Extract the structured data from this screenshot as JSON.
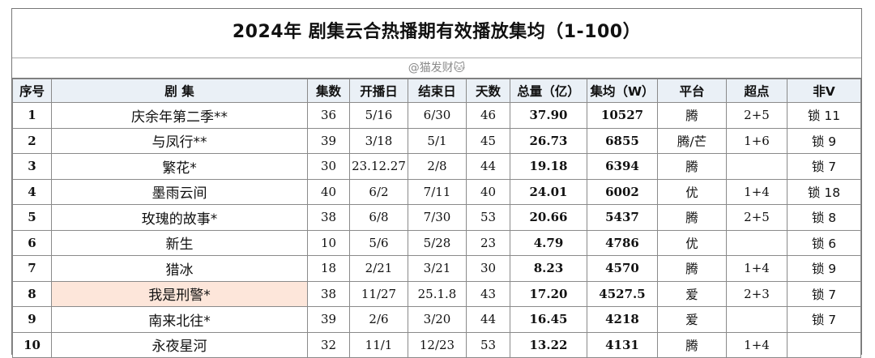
{
  "title": "2024年 剧集云合热播期有效播放集均（1-100）",
  "credit": "@猫发财🐱",
  "colors": {
    "header_bg": "#eaf0f6",
    "highlight_bg": "#fde6da",
    "border": "#8a8a8a"
  },
  "columns": [
    "序号",
    "剧 集",
    "集数",
    "开播日",
    "结束日",
    "天数",
    "总量（亿）",
    "集均（W）",
    "平台",
    "超点",
    "非V"
  ],
  "rows": [
    {
      "idx": "1",
      "name": "庆余年第二季**",
      "episodes": "36",
      "start": "5/16",
      "end": "6/30",
      "days": "46",
      "total": "37.90",
      "avg": "10527",
      "platform": "腾",
      "super": "2+5",
      "nonv": "锁 11",
      "highlight": false
    },
    {
      "idx": "2",
      "name": "与凤行**",
      "episodes": "39",
      "start": "3/18",
      "end": "5/1",
      "days": "45",
      "total": "26.73",
      "avg": "6855",
      "platform": "腾/芒",
      "super": "1+6",
      "nonv": "锁 9",
      "highlight": false
    },
    {
      "idx": "3",
      "name": "繁花*",
      "episodes": "30",
      "start": "23.12.27",
      "end": "2/8",
      "days": "44",
      "total": "19.18",
      "avg": "6394",
      "platform": "腾",
      "super": "",
      "nonv": "锁 7",
      "highlight": false
    },
    {
      "idx": "4",
      "name": "墨雨云间",
      "episodes": "40",
      "start": "6/2",
      "end": "7/11",
      "days": "40",
      "total": "24.01",
      "avg": "6002",
      "platform": "优",
      "super": "1+4",
      "nonv": "锁 18",
      "highlight": false
    },
    {
      "idx": "5",
      "name": "玫瑰的故事*",
      "episodes": "38",
      "start": "6/8",
      "end": "7/30",
      "days": "53",
      "total": "20.66",
      "avg": "5437",
      "platform": "腾",
      "super": "2+5",
      "nonv": "锁 8",
      "highlight": false
    },
    {
      "idx": "6",
      "name": "新生",
      "episodes": "10",
      "start": "5/6",
      "end": "5/28",
      "days": "23",
      "total": "4.79",
      "avg": "4786",
      "platform": "优",
      "super": "",
      "nonv": "锁 6",
      "highlight": false
    },
    {
      "idx": "7",
      "name": "猎冰",
      "episodes": "18",
      "start": "2/21",
      "end": "3/21",
      "days": "30",
      "total": "8.23",
      "avg": "4570",
      "platform": "腾",
      "super": "1+4",
      "nonv": "锁 9",
      "highlight": false
    },
    {
      "idx": "8",
      "name": "我是刑警*",
      "episodes": "38",
      "start": "11/27",
      "end": "25.1.8",
      "days": "43",
      "total": "17.20",
      "avg": "4527.5",
      "platform": "爱",
      "super": "2+3",
      "nonv": "锁 7",
      "highlight": true
    },
    {
      "idx": "9",
      "name": "南来北往*",
      "episodes": "39",
      "start": "2/6",
      "end": "3/20",
      "days": "44",
      "total": "16.45",
      "avg": "4218",
      "platform": "爱",
      "super": "",
      "nonv": "锁 7",
      "highlight": false
    },
    {
      "idx": "10",
      "name": "永夜星河",
      "episodes": "32",
      "start": "11/1",
      "end": "12/23",
      "days": "53",
      "total": "13.22",
      "avg": "4131",
      "platform": "腾",
      "super": "1+4",
      "nonv": "",
      "highlight": false
    }
  ]
}
